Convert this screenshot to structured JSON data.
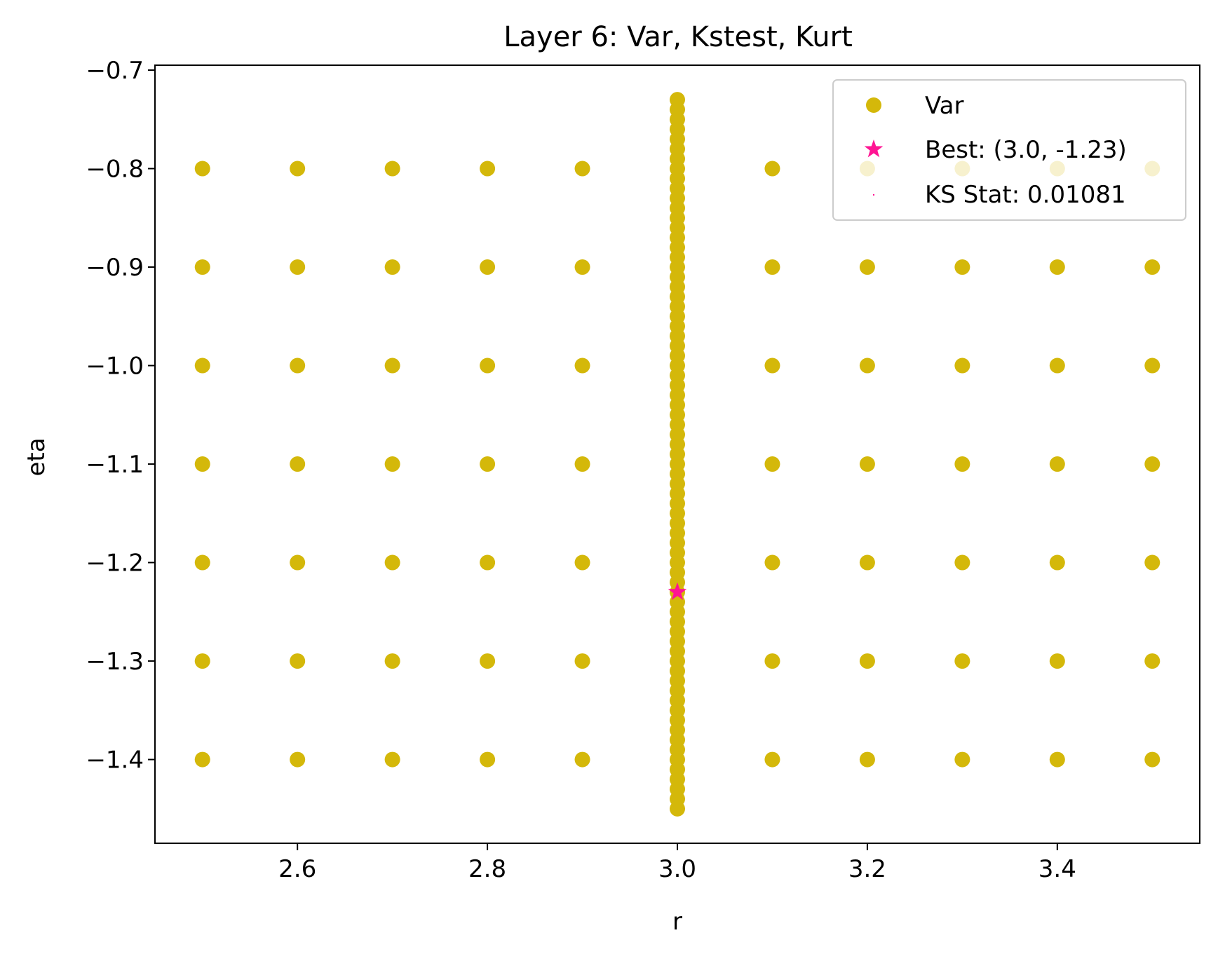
{
  "chart_data": {
    "type": "scatter",
    "title": "Layer 6: Var, Kstest, Kurt",
    "xlabel": "r",
    "ylabel": "eta",
    "xlim": [
      2.45,
      3.55
    ],
    "ylim": [
      -1.485,
      -0.695
    ],
    "xticks": [
      2.6,
      2.8,
      3.0,
      3.2,
      3.4
    ],
    "xtick_labels": [
      "2.6",
      "2.8",
      "3.0",
      "3.2",
      "3.4"
    ],
    "yticks": [
      -0.7,
      -0.8,
      -0.9,
      -1.0,
      -1.1,
      -1.2,
      -1.3,
      -1.4
    ],
    "ytick_labels": [
      "−0.7",
      "−0.8",
      "−0.9",
      "−1.0",
      "−1.1",
      "−1.2",
      "−1.3",
      "−1.4"
    ],
    "grid": false,
    "legend_position": "top-right",
    "grid_points": {
      "r": [
        2.5,
        2.6,
        2.7,
        2.8,
        2.9,
        3.1,
        3.2,
        3.3,
        3.4,
        3.5
      ],
      "eta": [
        -0.8,
        -0.9,
        -1.0,
        -1.1,
        -1.2,
        -1.3,
        -1.4
      ]
    },
    "dense_column": {
      "r": 3.0,
      "eta_from": -1.45,
      "eta_to": -0.73,
      "eta_step": 0.01
    },
    "series": [
      {
        "name": "Var",
        "marker": "circle",
        "color": "#d4b80a"
      },
      {
        "name": "Best: (3.0, -1.23)",
        "marker": "star",
        "color": "#ff1493",
        "x": 3.0,
        "y": -1.23
      },
      {
        "name": "KS Stat: 0.01081",
        "marker": "pixel",
        "color": "#ff1493"
      }
    ]
  }
}
